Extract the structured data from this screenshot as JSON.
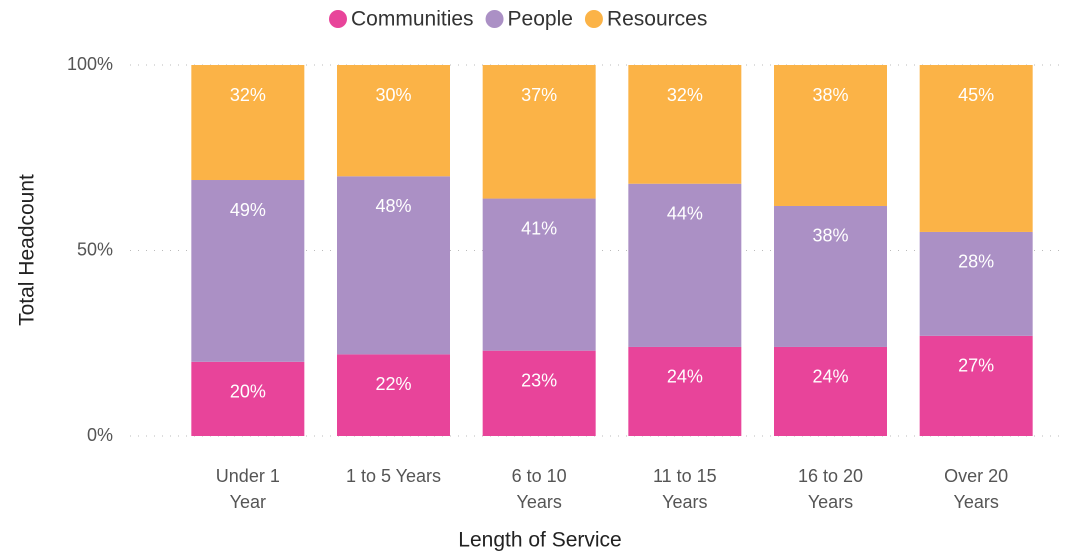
{
  "chart_data": {
    "type": "stacked_bar",
    "x_label": "Length of Service",
    "y_label": "Total Headcount",
    "categories": [
      "Under 1 Year",
      "1 to 5 Years",
      "6 to 10 Years",
      "11 to 15 Years",
      "16 to 20 Years",
      "Over 20 Years"
    ],
    "series": [
      {
        "name": "Communities",
        "color": "#e8449a",
        "values": [
          20,
          22,
          23,
          24,
          24,
          27
        ],
        "value_labels": [
          "20%",
          "22%",
          "23%",
          "24%",
          "24%",
          "27%"
        ]
      },
      {
        "name": "People",
        "color": "#ab90c5",
        "values": [
          49,
          48,
          41,
          44,
          38,
          28
        ],
        "value_labels": [
          "49%",
          "48%",
          "41%",
          "44%",
          "38%",
          "28%"
        ]
      },
      {
        "name": "Resources",
        "color": "#fbb347",
        "values": [
          32,
          30,
          37,
          32,
          38,
          45
        ],
        "value_labels": [
          "32%",
          "30%",
          "37%",
          "32%",
          "38%",
          "45%"
        ]
      }
    ],
    "ylim": [
      0,
      100
    ],
    "yticks": [
      {
        "value": 0,
        "label": "0%"
      },
      {
        "value": 50,
        "label": "50%"
      },
      {
        "value": 100,
        "label": "100%"
      }
    ],
    "grid": true,
    "legend": "top"
  }
}
